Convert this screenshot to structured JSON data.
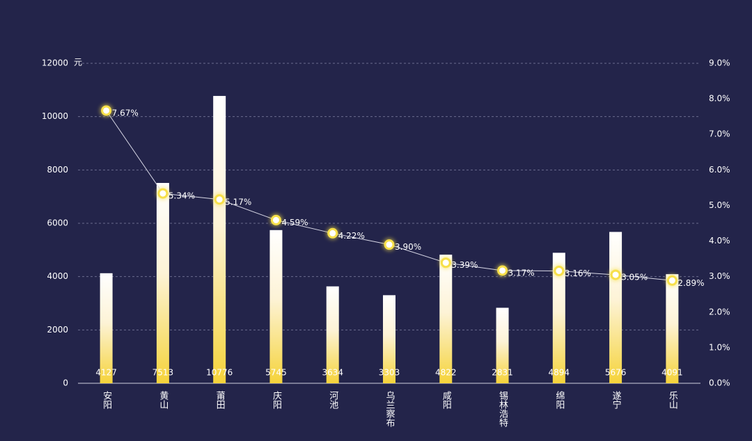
{
  "chart_data": {
    "type": "bar-line",
    "y_label": "元",
    "categories": [
      "安阳",
      "黄山",
      "莆田",
      "庆阳",
      "河池",
      "乌兰察布",
      "咸阳",
      "锡林浩特",
      "绵阳",
      "遂宁",
      "乐山"
    ],
    "series": [
      {
        "type": "bar",
        "color": "#f5d33a",
        "values": [
          4127,
          7513,
          10776,
          5745,
          3634,
          3303,
          4822,
          2831,
          4894,
          5676,
          4091
        ]
      },
      {
        "type": "line",
        "axis": "y2",
        "color": "#f7e04a",
        "values": [
          7.67,
          5.34,
          5.17,
          4.59,
          4.22,
          3.9,
          3.39,
          3.17,
          3.16,
          3.05,
          2.89
        ],
        "value_labels": [
          "7.67%",
          "5.34%",
          "5.17%",
          "4.59%",
          "4.22%",
          "3.90%",
          "3.39%",
          "3.17%",
          "3.16%",
          "3.05%",
          "2.89%"
        ]
      }
    ],
    "ylim": [
      0,
      12000
    ],
    "yticks": [
      0,
      2000,
      4000,
      6000,
      8000,
      10000,
      12000
    ],
    "y2lim": [
      0,
      9
    ],
    "y2ticks": [
      {
        "value": 0,
        "label": "0.0%"
      },
      {
        "value": 1,
        "label": "1.0%"
      },
      {
        "value": 2,
        "label": "2.0%"
      },
      {
        "value": 3,
        "label": "3.0%"
      },
      {
        "value": 4,
        "label": "4.0%"
      },
      {
        "value": 5,
        "label": "5.0%"
      },
      {
        "value": 6,
        "label": "6.0%"
      },
      {
        "value": 7,
        "label": "7.0%"
      },
      {
        "value": 8,
        "label": "8.0%"
      },
      {
        "value": 9,
        "label": "9.0%"
      }
    ],
    "grid": true
  }
}
